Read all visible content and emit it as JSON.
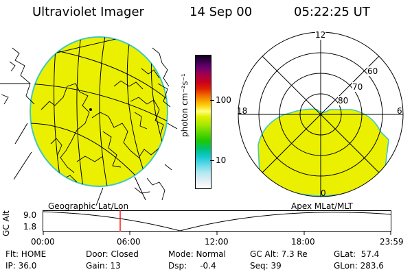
{
  "header": {
    "instrument": "Ultraviolet Imager",
    "date": "14 Sep 00",
    "time": "05:22:25 UT"
  },
  "colorbar": {
    "unit_label": "photon cm⁻²s⁻¹",
    "ticks": [
      "100",
      "10"
    ],
    "scale": "log"
  },
  "polar_plot": {
    "mlt_labels": {
      "top": "12",
      "left": "18",
      "right": "6",
      "bottom": "0"
    },
    "lat_labels": [
      "60",
      "70",
      "80"
    ]
  },
  "timeline": {
    "geo_label": "Geographic Lat/Lon",
    "apex_label": "Apex  MLat/MLT",
    "axis_label": "GC Alt",
    "y_ticks": [
      "9.0",
      "1.8"
    ],
    "x_ticks": [
      "00:00",
      "06:00",
      "12:00",
      "18:00",
      "23:59"
    ],
    "cursor_time": "05:22",
    "cursor_color": "#ff0000"
  },
  "status": {
    "filter": "Flt: HOME",
    "ip": "IP: 36.0",
    "door": "Door: Closed",
    "gain": "Gain: 13",
    "mode": "Mode: Normal",
    "dsp": "Dsp:     -0.4",
    "gc_alt": "GC Alt: 7.3 Re",
    "seq": "Seq: 39",
    "glat": "GLat:  57.4",
    "glon": "GLon: 283.6"
  },
  "colors": {
    "aurora_fill": "#eaf000",
    "aurora_edge": "#40c8c0"
  }
}
